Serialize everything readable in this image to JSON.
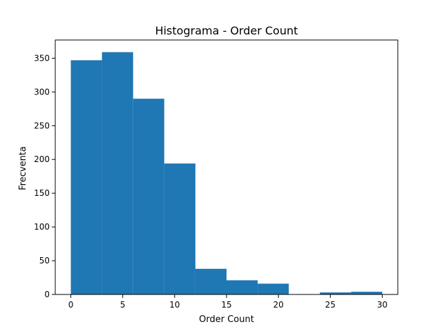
{
  "chart_data": {
    "type": "bar",
    "title": "Histograma - Order Count",
    "xlabel": "Order Count",
    "ylabel": "Frecventa",
    "bins": [
      {
        "start": 0,
        "end": 3,
        "count": 347
      },
      {
        "start": 3,
        "end": 6,
        "count": 359
      },
      {
        "start": 6,
        "end": 9,
        "count": 290
      },
      {
        "start": 9,
        "end": 12,
        "count": 194
      },
      {
        "start": 12,
        "end": 15,
        "count": 38
      },
      {
        "start": 15,
        "end": 18,
        "count": 21
      },
      {
        "start": 18,
        "end": 21,
        "count": 16
      },
      {
        "start": 21,
        "end": 24,
        "count": 0
      },
      {
        "start": 24,
        "end": 27,
        "count": 3
      },
      {
        "start": 27,
        "end": 30,
        "count": 4
      }
    ],
    "xlim": [
      -1.5,
      31.5
    ],
    "ylim": [
      0,
      377
    ],
    "xticks": [
      0,
      5,
      10,
      15,
      20,
      25,
      30
    ],
    "yticks": [
      0,
      50,
      100,
      150,
      200,
      250,
      300,
      350
    ],
    "bar_color": "#1f77b4",
    "grid": false,
    "legend": false
  }
}
